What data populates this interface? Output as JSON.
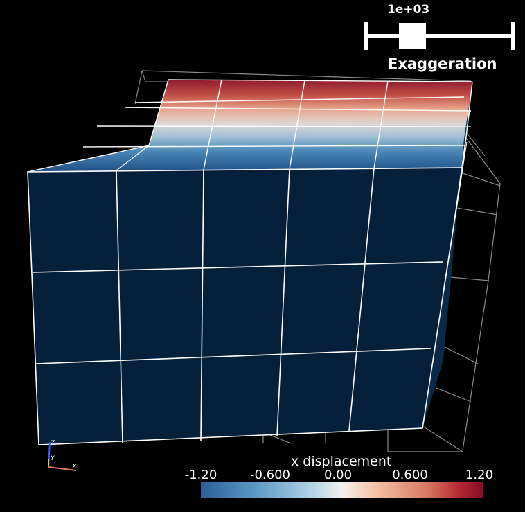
{
  "exaggeration_slider": {
    "value_label": "1e+03",
    "title": "Exaggeration",
    "handle_fraction": 0.28
  },
  "colorbar": {
    "title": "x displacement",
    "tick_labels": [
      "-1.20",
      "-0.600",
      "0.00",
      "0.600",
      "1.20"
    ],
    "range": [
      -1.2,
      1.2
    ],
    "colormap": "blue-white-red diverging"
  },
  "orientation_axes": {
    "z_label": "Z",
    "y_label": "Y",
    "x_label": "X"
  },
  "colors": {
    "background": "#000000",
    "mesh_dark_blue": "#04203b",
    "wireframe": "#8a8a8a",
    "edges": "#ffffff",
    "x_axis": "#e07a5f",
    "y_axis": "#e9c46a",
    "z_axis": "#3a5bff"
  }
}
